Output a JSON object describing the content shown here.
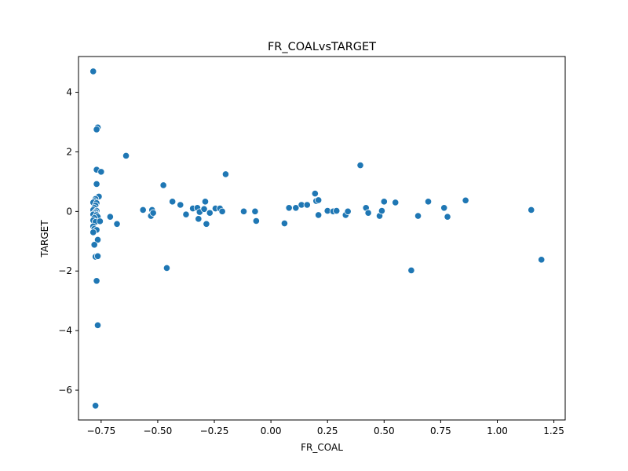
{
  "chart_data": {
    "type": "scatter",
    "title": "FR_COALvsTARGET",
    "xlabel": "FR_COAL",
    "ylabel": "TARGET",
    "xlim": [
      -0.85,
      1.3
    ],
    "ylim": [
      -7.0,
      5.2
    ],
    "xticks": [
      -0.75,
      -0.5,
      -0.25,
      0.0,
      0.25,
      0.5,
      0.75,
      1.0,
      1.25
    ],
    "xtick_labels": [
      "−0.75",
      "−0.50",
      "−0.25",
      "0.00",
      "0.25",
      "0.50",
      "0.75",
      "1.00",
      "1.25"
    ],
    "yticks": [
      -6,
      -4,
      -2,
      0,
      2,
      4
    ],
    "ytick_labels": [
      "−6",
      "−4",
      "−2",
      "0",
      "2",
      "4"
    ],
    "grid": false,
    "marker_color": "#1f77b4",
    "points": [
      {
        "x": -0.785,
        "y": 4.7
      },
      {
        "x": -0.765,
        "y": 2.82
      },
      {
        "x": -0.77,
        "y": 2.75
      },
      {
        "x": -0.77,
        "y": 1.4
      },
      {
        "x": -0.75,
        "y": 1.33
      },
      {
        "x": -0.64,
        "y": 1.87
      },
      {
        "x": -0.77,
        "y": 0.92
      },
      {
        "x": -0.76,
        "y": 0.5
      },
      {
        "x": -0.775,
        "y": 0.42
      },
      {
        "x": -0.78,
        "y": 0.35
      },
      {
        "x": -0.785,
        "y": 0.3
      },
      {
        "x": -0.77,
        "y": 0.28
      },
      {
        "x": -0.775,
        "y": 0.2
      },
      {
        "x": -0.78,
        "y": 0.12
      },
      {
        "x": -0.785,
        "y": 0.05
      },
      {
        "x": -0.77,
        "y": 0.02
      },
      {
        "x": -0.775,
        "y": -0.02
      },
      {
        "x": -0.78,
        "y": -0.06
      },
      {
        "x": -0.785,
        "y": -0.1
      },
      {
        "x": -0.77,
        "y": -0.12
      },
      {
        "x": -0.765,
        "y": -0.18
      },
      {
        "x": -0.78,
        "y": -0.22
      },
      {
        "x": -0.785,
        "y": -0.3
      },
      {
        "x": -0.775,
        "y": -0.35
      },
      {
        "x": -0.755,
        "y": -0.33
      },
      {
        "x": -0.785,
        "y": -0.5
      },
      {
        "x": -0.78,
        "y": -0.58
      },
      {
        "x": -0.77,
        "y": -0.62
      },
      {
        "x": -0.785,
        "y": -0.7
      },
      {
        "x": -0.765,
        "y": -0.95
      },
      {
        "x": -0.78,
        "y": -1.12
      },
      {
        "x": -0.775,
        "y": -1.52
      },
      {
        "x": -0.765,
        "y": -1.5
      },
      {
        "x": -0.77,
        "y": -2.33
      },
      {
        "x": -0.765,
        "y": -3.82
      },
      {
        "x": -0.775,
        "y": -6.52
      },
      {
        "x": -0.71,
        "y": -0.18
      },
      {
        "x": -0.68,
        "y": -0.42
      },
      {
        "x": -0.565,
        "y": 0.05
      },
      {
        "x": -0.525,
        "y": 0.05
      },
      {
        "x": -0.53,
        "y": -0.15
      },
      {
        "x": -0.52,
        "y": -0.05
      },
      {
        "x": -0.475,
        "y": 0.88
      },
      {
        "x": -0.46,
        "y": -1.9
      },
      {
        "x": -0.435,
        "y": 0.33
      },
      {
        "x": -0.4,
        "y": 0.22
      },
      {
        "x": -0.375,
        "y": -0.1
      },
      {
        "x": -0.345,
        "y": 0.1
      },
      {
        "x": -0.325,
        "y": 0.12
      },
      {
        "x": -0.315,
        "y": -0.02
      },
      {
        "x": -0.32,
        "y": -0.25
      },
      {
        "x": -0.295,
        "y": 0.08
      },
      {
        "x": -0.29,
        "y": 0.33
      },
      {
        "x": -0.285,
        "y": -0.42
      },
      {
        "x": -0.27,
        "y": -0.05
      },
      {
        "x": -0.245,
        "y": 0.1
      },
      {
        "x": -0.225,
        "y": 0.1
      },
      {
        "x": -0.215,
        "y": 0.0
      },
      {
        "x": -0.2,
        "y": 1.25
      },
      {
        "x": -0.12,
        "y": 0.0
      },
      {
        "x": -0.07,
        "y": 0.0
      },
      {
        "x": -0.065,
        "y": -0.32
      },
      {
        "x": 0.06,
        "y": -0.4
      },
      {
        "x": 0.08,
        "y": 0.12
      },
      {
        "x": 0.11,
        "y": 0.12
      },
      {
        "x": 0.135,
        "y": 0.22
      },
      {
        "x": 0.16,
        "y": 0.22
      },
      {
        "x": 0.195,
        "y": 0.6
      },
      {
        "x": 0.2,
        "y": 0.35
      },
      {
        "x": 0.21,
        "y": 0.38
      },
      {
        "x": 0.21,
        "y": -0.12
      },
      {
        "x": 0.25,
        "y": 0.02
      },
      {
        "x": 0.275,
        "y": 0.0
      },
      {
        "x": 0.29,
        "y": 0.02
      },
      {
        "x": 0.33,
        "y": -0.12
      },
      {
        "x": 0.34,
        "y": 0.0
      },
      {
        "x": 0.395,
        "y": 1.55
      },
      {
        "x": 0.42,
        "y": 0.12
      },
      {
        "x": 0.43,
        "y": -0.05
      },
      {
        "x": 0.48,
        "y": -0.15
      },
      {
        "x": 0.49,
        "y": 0.02
      },
      {
        "x": 0.5,
        "y": 0.33
      },
      {
        "x": 0.55,
        "y": 0.3
      },
      {
        "x": 0.62,
        "y": -1.98
      },
      {
        "x": 0.65,
        "y": -0.15
      },
      {
        "x": 0.695,
        "y": 0.33
      },
      {
        "x": 0.765,
        "y": 0.12
      },
      {
        "x": 0.78,
        "y": -0.18
      },
      {
        "x": 0.86,
        "y": 0.37
      },
      {
        "x": 1.15,
        "y": 0.05
      },
      {
        "x": 1.195,
        "y": -1.62
      }
    ]
  }
}
